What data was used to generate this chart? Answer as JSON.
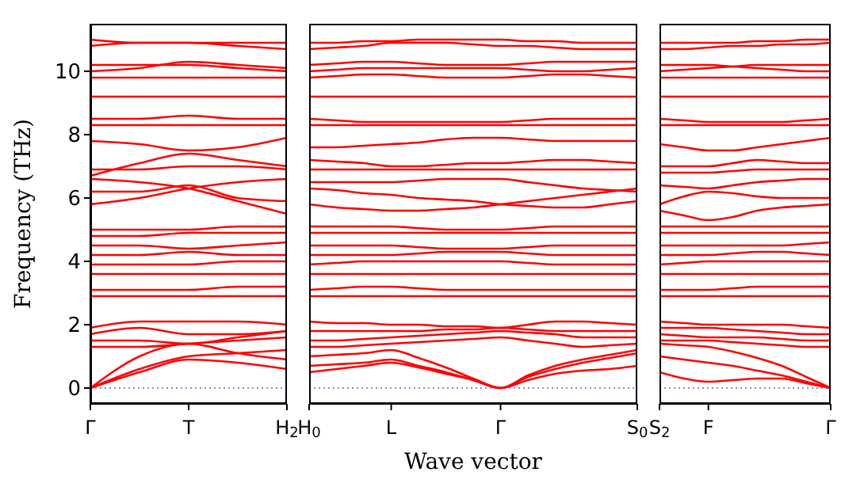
{
  "chart_data": [
    {
      "type": "line",
      "ylabel": "Frequency (THz)",
      "categories": [
        "Γ",
        null,
        "T",
        null,
        "H$_{2}$"
      ],
      "ylim": [
        -0.5,
        11.5
      ],
      "yticks": [
        0,
        2,
        4,
        6,
        8,
        10
      ],
      "ref_lines": [
        {
          "axis": "y",
          "value": 0,
          "color": "#6666cc",
          "line_style": "dotted"
        }
      ],
      "series": [
        {
          "color": "#ff0000",
          "values": [
            0,
            0.5,
            0.9,
            0.8,
            0.6
          ]
        },
        {
          "color": "#ff0000",
          "values": [
            0,
            0.6,
            1.0,
            1.1,
            1.2
          ]
        },
        {
          "color": "#ff0000",
          "values": [
            0,
            1.0,
            1.4,
            1.1,
            0.9
          ]
        },
        {
          "color": "#ff0000",
          "values": [
            1.3,
            1.3,
            1.4,
            1.5,
            1.6
          ]
        },
        {
          "color": "#ff0000",
          "values": [
            1.5,
            1.5,
            1.4,
            1.6,
            1.8
          ]
        },
        {
          "color": "#ff0000",
          "values": [
            1.7,
            1.9,
            1.7,
            1.7,
            1.8
          ]
        },
        {
          "color": "#ff0000",
          "values": [
            1.9,
            2.1,
            2.1,
            2.1,
            2.0
          ]
        },
        {
          "color": "#ff0000",
          "values": [
            2.9,
            2.9,
            2.9,
            2.9,
            2.9
          ]
        },
        {
          "color": "#ff0000",
          "values": [
            3.1,
            3.1,
            3.1,
            3.2,
            3.2
          ]
        },
        {
          "color": "#ff0000",
          "values": [
            3.6,
            3.6,
            3.6,
            3.6,
            3.6
          ]
        },
        {
          "color": "#ff0000",
          "values": [
            3.9,
            3.9,
            3.9,
            4.0,
            4.0
          ]
        },
        {
          "color": "#ff0000",
          "values": [
            4.2,
            4.2,
            4.3,
            4.2,
            4.2
          ]
        },
        {
          "color": "#ff0000",
          "values": [
            4.5,
            4.5,
            4.4,
            4.5,
            4.6
          ]
        },
        {
          "color": "#ff0000",
          "values": [
            4.8,
            4.8,
            4.9,
            4.9,
            4.9
          ]
        },
        {
          "color": "#ff0000",
          "values": [
            5.0,
            5.0,
            5.0,
            5.1,
            5.1
          ]
        },
        {
          "color": "#ff0000",
          "values": [
            5.8,
            6.0,
            6.3,
            6.5,
            6.6
          ]
        },
        {
          "color": "#ff0000",
          "values": [
            6.6,
            6.5,
            6.3,
            5.9,
            5.5
          ]
        },
        {
          "color": "#ff0000",
          "values": [
            6.2,
            6.2,
            6.4,
            6.0,
            5.9
          ]
        },
        {
          "color": "#ff0000",
          "values": [
            6.9,
            6.9,
            7.0,
            7.0,
            6.9
          ]
        },
        {
          "color": "#ff0000",
          "values": [
            6.7,
            7.1,
            7.4,
            7.2,
            7.0
          ]
        },
        {
          "color": "#ff0000",
          "values": [
            7.8,
            7.7,
            7.5,
            7.6,
            7.9
          ]
        },
        {
          "color": "#ff0000",
          "values": [
            8.3,
            8.3,
            8.3,
            8.3,
            8.3
          ]
        },
        {
          "color": "#ff0000",
          "values": [
            8.5,
            8.5,
            8.6,
            8.5,
            8.5
          ]
        },
        {
          "color": "#ff0000",
          "values": [
            9.2,
            9.2,
            9.2,
            9.2,
            9.2
          ]
        },
        {
          "color": "#ff0000",
          "values": [
            9.8,
            9.8,
            9.8,
            9.8,
            9.8
          ]
        },
        {
          "color": "#ff0000",
          "values": [
            10.0,
            10.1,
            10.3,
            10.2,
            10.1
          ]
        },
        {
          "color": "#ff0000",
          "values": [
            10.2,
            10.2,
            10.2,
            10.1,
            10.0
          ]
        },
        {
          "color": "#ff0000",
          "values": [
            10.8,
            10.9,
            10.9,
            10.8,
            10.7
          ]
        },
        {
          "color": "#ff0000",
          "values": [
            11.0,
            10.9,
            10.9,
            10.9,
            10.9
          ]
        }
      ]
    },
    {
      "type": "line",
      "xlabel": "Wave vector",
      "tick_labels": "x",
      "categories": [
        "H$_{0}$",
        null,
        null,
        "L",
        null,
        null,
        null,
        "Γ",
        null,
        null,
        null,
        null,
        "S$_{0}$"
      ],
      "ylim": [
        -0.5,
        11.5
      ],
      "yticks": [
        0,
        2,
        4,
        6,
        8,
        10
      ],
      "ref_lines": [
        {
          "axis": "y",
          "value": 0,
          "color": "#6666cc",
          "line_style": "dotted"
        }
      ],
      "series": [
        {
          "color": "#ff0000",
          "values": [
            0.5,
            0.6,
            0.7,
            0.8,
            0.65,
            0.45,
            0.25,
            0,
            0.25,
            0.45,
            0.55,
            0.6,
            0.7
          ]
        },
        {
          "color": "#ff0000",
          "values": [
            0.7,
            0.75,
            0.8,
            0.9,
            0.7,
            0.5,
            0.25,
            0,
            0.35,
            0.6,
            0.8,
            0.95,
            1.1
          ]
        },
        {
          "color": "#ff0000",
          "values": [
            1.0,
            1.05,
            1.1,
            1.2,
            0.95,
            0.65,
            0.3,
            0,
            0.4,
            0.7,
            0.9,
            1.05,
            1.2
          ]
        },
        {
          "color": "#ff0000",
          "values": [
            1.3,
            1.3,
            1.35,
            1.4,
            1.45,
            1.5,
            1.55,
            1.6,
            1.5,
            1.4,
            1.3,
            1.35,
            1.4
          ]
        },
        {
          "color": "#ff0000",
          "values": [
            1.5,
            1.5,
            1.55,
            1.6,
            1.65,
            1.7,
            1.75,
            1.8,
            1.75,
            1.7,
            1.6,
            1.6,
            1.6
          ]
        },
        {
          "color": "#ff0000",
          "values": [
            1.8,
            1.8,
            1.8,
            1.8,
            1.8,
            1.85,
            1.85,
            1.9,
            1.85,
            1.8,
            1.8,
            1.8,
            1.8
          ]
        },
        {
          "color": "#ff0000",
          "values": [
            2.1,
            2.05,
            2.05,
            2.0,
            2.0,
            1.95,
            1.95,
            1.9,
            2.0,
            2.1,
            2.1,
            2.05,
            2.0
          ]
        },
        {
          "color": "#ff0000",
          "values": [
            2.9,
            2.9,
            2.9,
            2.9,
            2.9,
            2.9,
            2.9,
            2.9,
            2.9,
            2.9,
            2.9,
            2.9,
            2.9
          ]
        },
        {
          "color": "#ff0000",
          "values": [
            3.1,
            3.15,
            3.2,
            3.2,
            3.15,
            3.1,
            3.1,
            3.1,
            3.1,
            3.1,
            3.1,
            3.1,
            3.1
          ]
        },
        {
          "color": "#ff0000",
          "values": [
            3.6,
            3.6,
            3.6,
            3.6,
            3.6,
            3.6,
            3.6,
            3.6,
            3.6,
            3.6,
            3.6,
            3.6,
            3.6
          ]
        },
        {
          "color": "#ff0000",
          "values": [
            3.9,
            3.95,
            4.0,
            4.0,
            4.0,
            4.0,
            4.0,
            4.0,
            3.95,
            3.9,
            3.9,
            3.9,
            3.9
          ]
        },
        {
          "color": "#ff0000",
          "values": [
            4.2,
            4.2,
            4.2,
            4.2,
            4.25,
            4.3,
            4.3,
            4.3,
            4.25,
            4.2,
            4.2,
            4.2,
            4.2
          ]
        },
        {
          "color": "#ff0000",
          "values": [
            4.5,
            4.5,
            4.5,
            4.5,
            4.45,
            4.4,
            4.4,
            4.4,
            4.45,
            4.5,
            4.5,
            4.5,
            4.5
          ]
        },
        {
          "color": "#ff0000",
          "values": [
            4.9,
            4.9,
            4.9,
            4.9,
            4.9,
            4.9,
            4.9,
            4.9,
            4.9,
            4.9,
            4.9,
            4.9,
            4.9
          ]
        },
        {
          "color": "#ff0000",
          "values": [
            5.1,
            5.1,
            5.1,
            5.1,
            5.05,
            5.0,
            5.0,
            5.0,
            5.05,
            5.1,
            5.1,
            5.1,
            5.1
          ]
        },
        {
          "color": "#ff0000",
          "values": [
            5.8,
            5.7,
            5.65,
            5.6,
            5.6,
            5.65,
            5.7,
            5.8,
            5.9,
            6.0,
            6.1,
            6.2,
            6.3
          ]
        },
        {
          "color": "#ff0000",
          "values": [
            6.3,
            6.25,
            6.15,
            6.1,
            6.0,
            5.95,
            5.9,
            5.8,
            5.75,
            5.7,
            5.7,
            5.8,
            5.9
          ]
        },
        {
          "color": "#ff0000",
          "values": [
            6.5,
            6.5,
            6.5,
            6.5,
            6.55,
            6.6,
            6.6,
            6.6,
            6.5,
            6.4,
            6.3,
            6.25,
            6.2
          ]
        },
        {
          "color": "#ff0000",
          "values": [
            6.9,
            6.9,
            6.9,
            6.9,
            6.9,
            6.9,
            6.9,
            6.9,
            6.9,
            6.9,
            6.9,
            6.9,
            6.9
          ]
        },
        {
          "color": "#ff0000",
          "values": [
            7.2,
            7.15,
            7.1,
            7.0,
            7.0,
            7.05,
            7.1,
            7.1,
            7.15,
            7.2,
            7.2,
            7.15,
            7.1
          ]
        },
        {
          "color": "#ff0000",
          "values": [
            7.6,
            7.6,
            7.65,
            7.7,
            7.75,
            7.85,
            7.9,
            7.9,
            7.85,
            7.8,
            7.8,
            7.8,
            7.8
          ]
        },
        {
          "color": "#ff0000",
          "values": [
            8.3,
            8.3,
            8.3,
            8.3,
            8.3,
            8.3,
            8.3,
            8.3,
            8.3,
            8.3,
            8.3,
            8.3,
            8.3
          ]
        },
        {
          "color": "#ff0000",
          "values": [
            8.5,
            8.45,
            8.4,
            8.4,
            8.4,
            8.4,
            8.4,
            8.4,
            8.45,
            8.5,
            8.5,
            8.5,
            8.5
          ]
        },
        {
          "color": "#ff0000",
          "values": [
            9.2,
            9.2,
            9.2,
            9.2,
            9.2,
            9.2,
            9.2,
            9.2,
            9.2,
            9.2,
            9.2,
            9.2,
            9.2
          ]
        },
        {
          "color": "#ff0000",
          "values": [
            9.8,
            9.85,
            9.9,
            9.9,
            9.85,
            9.8,
            9.8,
            9.8,
            9.85,
            9.9,
            9.9,
            9.85,
            9.8
          ]
        },
        {
          "color": "#ff0000",
          "values": [
            10.0,
            10.05,
            10.1,
            10.1,
            10.1,
            10.1,
            10.1,
            10.1,
            10.05,
            10.0,
            10.0,
            10.05,
            10.1
          ]
        },
        {
          "color": "#ff0000",
          "values": [
            10.2,
            10.25,
            10.3,
            10.3,
            10.25,
            10.2,
            10.2,
            10.2,
            10.25,
            10.3,
            10.3,
            10.3,
            10.3
          ]
        },
        {
          "color": "#ff0000",
          "values": [
            10.7,
            10.75,
            10.8,
            10.9,
            10.9,
            10.9,
            10.85,
            10.8,
            10.8,
            10.75,
            10.7,
            10.7,
            10.7
          ]
        },
        {
          "color": "#ff0000",
          "values": [
            10.9,
            10.9,
            10.95,
            10.95,
            11.0,
            11.0,
            11.0,
            11.0,
            10.95,
            10.95,
            10.9,
            10.9,
            10.9
          ]
        }
      ]
    },
    {
      "type": "line",
      "tick_labels": "x",
      "categories": [
        "S$_{2}$",
        null,
        "F",
        null,
        null,
        null,
        null,
        "Γ"
      ],
      "ylim": [
        -0.5,
        11.5
      ],
      "yticks": [
        0,
        2,
        4,
        6,
        8,
        10
      ],
      "ref_lines": [
        {
          "axis": "y",
          "value": 0,
          "color": "#6666cc",
          "line_style": "dotted"
        }
      ],
      "series": [
        {
          "color": "#ff0000",
          "values": [
            0.5,
            0.3,
            0.2,
            0.25,
            0.3,
            0.3,
            0.15,
            0
          ]
        },
        {
          "color": "#ff0000",
          "values": [
            1.0,
            0.9,
            0.8,
            0.7,
            0.55,
            0.4,
            0.2,
            0
          ]
        },
        {
          "color": "#ff0000",
          "values": [
            1.4,
            1.35,
            1.3,
            1.15,
            0.95,
            0.7,
            0.35,
            0
          ]
        },
        {
          "color": "#ff0000",
          "values": [
            1.5,
            1.5,
            1.5,
            1.45,
            1.4,
            1.35,
            1.3,
            1.3
          ]
        },
        {
          "color": "#ff0000",
          "values": [
            1.7,
            1.65,
            1.6,
            1.6,
            1.6,
            1.55,
            1.5,
            1.5
          ]
        },
        {
          "color": "#ff0000",
          "values": [
            1.9,
            1.9,
            1.9,
            1.85,
            1.8,
            1.75,
            1.7,
            1.7
          ]
        },
        {
          "color": "#ff0000",
          "values": [
            2.1,
            2.05,
            2.0,
            2.0,
            2.0,
            2.0,
            1.95,
            1.9
          ]
        },
        {
          "color": "#ff0000",
          "values": [
            2.9,
            2.9,
            2.9,
            2.9,
            2.9,
            2.9,
            2.9,
            2.9
          ]
        },
        {
          "color": "#ff0000",
          "values": [
            3.1,
            3.1,
            3.1,
            3.15,
            3.2,
            3.2,
            3.2,
            3.2
          ]
        },
        {
          "color": "#ff0000",
          "values": [
            3.6,
            3.6,
            3.6,
            3.6,
            3.6,
            3.6,
            3.6,
            3.6
          ]
        },
        {
          "color": "#ff0000",
          "values": [
            3.9,
            3.95,
            4.0,
            4.0,
            4.0,
            4.0,
            4.0,
            4.0
          ]
        },
        {
          "color": "#ff0000",
          "values": [
            4.2,
            4.2,
            4.2,
            4.25,
            4.3,
            4.3,
            4.25,
            4.2
          ]
        },
        {
          "color": "#ff0000",
          "values": [
            4.5,
            4.5,
            4.5,
            4.5,
            4.5,
            4.5,
            4.55,
            4.6
          ]
        },
        {
          "color": "#ff0000",
          "values": [
            4.9,
            4.9,
            4.9,
            4.9,
            4.9,
            4.9,
            4.9,
            4.9
          ]
        },
        {
          "color": "#ff0000",
          "values": [
            5.1,
            5.1,
            5.1,
            5.1,
            5.1,
            5.1,
            5.1,
            5.1
          ]
        },
        {
          "color": "#ff0000",
          "values": [
            5.6,
            5.45,
            5.3,
            5.4,
            5.6,
            5.7,
            5.75,
            5.8
          ]
        },
        {
          "color": "#ff0000",
          "values": [
            5.8,
            6.05,
            6.2,
            6.15,
            6.05,
            6.0,
            6.0,
            6.0
          ]
        },
        {
          "color": "#ff0000",
          "values": [
            6.4,
            6.35,
            6.3,
            6.4,
            6.5,
            6.55,
            6.6,
            6.6
          ]
        },
        {
          "color": "#ff0000",
          "values": [
            6.8,
            6.8,
            6.8,
            6.85,
            6.9,
            6.9,
            6.9,
            6.9
          ]
        },
        {
          "color": "#ff0000",
          "values": [
            7.0,
            7.0,
            7.0,
            7.1,
            7.2,
            7.15,
            7.1,
            7.1
          ]
        },
        {
          "color": "#ff0000",
          "values": [
            7.7,
            7.6,
            7.5,
            7.5,
            7.6,
            7.7,
            7.8,
            7.9
          ]
        },
        {
          "color": "#ff0000",
          "values": [
            8.3,
            8.3,
            8.3,
            8.3,
            8.3,
            8.3,
            8.3,
            8.3
          ]
        },
        {
          "color": "#ff0000",
          "values": [
            8.5,
            8.45,
            8.4,
            8.4,
            8.4,
            8.4,
            8.45,
            8.5
          ]
        },
        {
          "color": "#ff0000",
          "values": [
            9.2,
            9.2,
            9.2,
            9.2,
            9.2,
            9.2,
            9.2,
            9.2
          ]
        },
        {
          "color": "#ff0000",
          "values": [
            9.8,
            9.8,
            9.8,
            9.8,
            9.8,
            9.8,
            9.8,
            9.8
          ]
        },
        {
          "color": "#ff0000",
          "values": [
            10.0,
            10.05,
            10.1,
            10.15,
            10.2,
            10.2,
            10.2,
            10.2
          ]
        },
        {
          "color": "#ff0000",
          "values": [
            10.2,
            10.2,
            10.2,
            10.15,
            10.1,
            10.05,
            10.0,
            10.0
          ]
        },
        {
          "color": "#ff0000",
          "values": [
            10.7,
            10.7,
            10.75,
            10.8,
            10.8,
            10.85,
            10.85,
            10.9
          ]
        },
        {
          "color": "#ff0000",
          "values": [
            10.9,
            10.9,
            10.9,
            10.9,
            10.95,
            10.95,
            11.0,
            11.0
          ]
        }
      ]
    }
  ]
}
